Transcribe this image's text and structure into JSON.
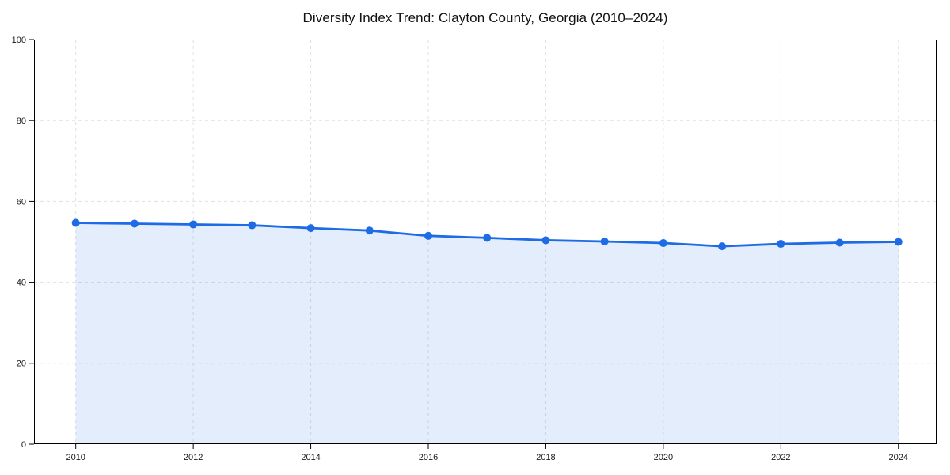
{
  "chart_data": {
    "type": "line",
    "title": "Diversity Index Trend: Clayton County, Georgia (2010–2024)",
    "x": [
      2010,
      2011,
      2012,
      2013,
      2014,
      2015,
      2016,
      2017,
      2018,
      2019,
      2020,
      2021,
      2022,
      2023,
      2024
    ],
    "series": [
      {
        "name": "Diversity Index",
        "values": [
          54.7,
          54.5,
          54.3,
          54.1,
          53.4,
          52.8,
          51.5,
          51.0,
          50.4,
          50.1,
          49.7,
          48.9,
          49.5,
          49.8,
          50.0
        ]
      }
    ],
    "xlabel": "",
    "ylabel": "",
    "xlim": [
      2009.29,
      2024.65
    ],
    "ylim": [
      0,
      100
    ],
    "xticks": [
      2010,
      2012,
      2014,
      2016,
      2018,
      2020,
      2022,
      2024
    ],
    "yticks": [
      0,
      20,
      40,
      60,
      80,
      100
    ],
    "grid": true,
    "grid_style": "dashed",
    "legend": "none",
    "marker": "circle",
    "marker_radius": 5,
    "line_width": 2.8,
    "area_fill": true,
    "colors": {
      "line": "#1e6be6",
      "marker": "#1e6be6",
      "fill": "#1e6be6",
      "fill_opacity": 0.12,
      "grid": "#e0e0e0",
      "axis": "#000000",
      "tick_text": "#1a1a1a",
      "title": "#111111",
      "background": "#ffffff"
    }
  }
}
